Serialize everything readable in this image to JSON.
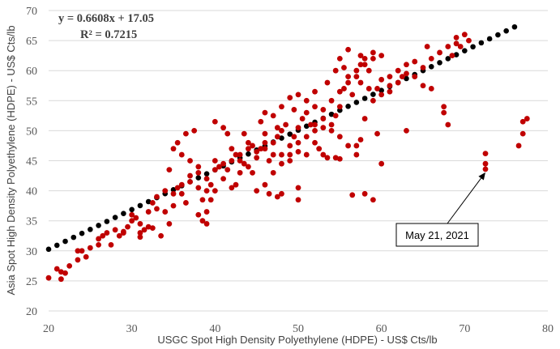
{
  "chart_data": {
    "type": "scatter",
    "title": "",
    "xlabel": "USGC Spot High Density Polyethylene (HDPE) - US$ Cts/lb",
    "ylabel": "Asia Spot High Density Polyethylene (HDPE) - US$ Cts/lb",
    "xlim": [
      20,
      80
    ],
    "ylim": [
      20,
      70
    ],
    "x_ticks": [
      20,
      30,
      40,
      50,
      60,
      70,
      80
    ],
    "y_ticks": [
      20,
      25,
      30,
      35,
      40,
      45,
      50,
      55,
      60,
      65,
      70
    ],
    "grid": "horizontal",
    "legend": "none",
    "colors": {
      "observed": "#c00000",
      "trend": "#000000",
      "grid": "#d9d9d9"
    },
    "equation": "y = 0.6608x + 17.05",
    "r_squared": "R² = 0.7215",
    "trendline": {
      "slope": 0.6608,
      "intercept": 17.05,
      "x_values": [
        20,
        21,
        22,
        23,
        24,
        25,
        26,
        27,
        28,
        29,
        30,
        31,
        32,
        33,
        34,
        35,
        36,
        37,
        38,
        39,
        40,
        41,
        42,
        43,
        44,
        45,
        46,
        47,
        48,
        49,
        50,
        51,
        52,
        53,
        54,
        55,
        56,
        57,
        58,
        59,
        60,
        61,
        62,
        63,
        64,
        65,
        66,
        67,
        68,
        69,
        70,
        71,
        72,
        73,
        74,
        75,
        76
      ]
    },
    "annotation": {
      "text": "May 21, 2021",
      "point": [
        72.5,
        43.6
      ]
    },
    "series": [
      {
        "points": [
          [
            20,
            25.5
          ],
          [
            21,
            27
          ],
          [
            21.5,
            26.5
          ],
          [
            22,
            26.3
          ],
          [
            21.5,
            25.3
          ],
          [
            22.5,
            27.5
          ],
          [
            23.5,
            28.5
          ],
          [
            23.5,
            30
          ],
          [
            24,
            30
          ],
          [
            24.5,
            29
          ],
          [
            25,
            30.5
          ],
          [
            26,
            32
          ],
          [
            26.5,
            32.5
          ],
          [
            26,
            31
          ],
          [
            27,
            33
          ],
          [
            27.5,
            31
          ],
          [
            28,
            33.5
          ],
          [
            28.5,
            32.5
          ],
          [
            29,
            33
          ],
          [
            29.5,
            34
          ],
          [
            30,
            35
          ],
          [
            30.5,
            35.5
          ],
          [
            31,
            34.5
          ],
          [
            31.5,
            33.5
          ],
          [
            32,
            34
          ],
          [
            29,
            33.2
          ],
          [
            30,
            36
          ],
          [
            31,
            33
          ],
          [
            32,
            36.5
          ],
          [
            33,
            37
          ],
          [
            33.5,
            32.5
          ],
          [
            32.5,
            33.8
          ],
          [
            31,
            32.3
          ],
          [
            32.5,
            38
          ],
          [
            33,
            39
          ],
          [
            34,
            40
          ],
          [
            35,
            39.5
          ],
          [
            35.5,
            40.5
          ],
          [
            36,
            41
          ],
          [
            37,
            41.5
          ],
          [
            38,
            43
          ],
          [
            34.5,
            43.5
          ],
          [
            35,
            47
          ],
          [
            35.5,
            48
          ],
          [
            36,
            46
          ],
          [
            37,
            45
          ],
          [
            37.5,
            50
          ],
          [
            36.5,
            49.5
          ],
          [
            38,
            44
          ],
          [
            38.5,
            38.5
          ],
          [
            39,
            40
          ],
          [
            39.5,
            38.5
          ],
          [
            38,
            36
          ],
          [
            39,
            34.5
          ],
          [
            38.5,
            35
          ],
          [
            39,
            36.5
          ],
          [
            40,
            40
          ],
          [
            40,
            45
          ],
          [
            40.5,
            44
          ],
          [
            41,
            42
          ],
          [
            41.5,
            43.5
          ],
          [
            42,
            47
          ],
          [
            42.5,
            46
          ],
          [
            43,
            45
          ],
          [
            43.5,
            44.5
          ],
          [
            44,
            48
          ],
          [
            44.5,
            47.5
          ],
          [
            45,
            46.5
          ],
          [
            45.5,
            47
          ],
          [
            46,
            48
          ],
          [
            46.5,
            45
          ],
          [
            47,
            46
          ],
          [
            47.5,
            49
          ],
          [
            48,
            50
          ],
          [
            48.5,
            51
          ],
          [
            49,
            47.5
          ],
          [
            49.5,
            49
          ],
          [
            50,
            50.5
          ],
          [
            50.5,
            52
          ],
          [
            51,
            53
          ],
          [
            51.5,
            51
          ],
          [
            52,
            48
          ],
          [
            52.5,
            47
          ],
          [
            53,
            46
          ],
          [
            53.5,
            45.5
          ],
          [
            54,
            51
          ],
          [
            54.5,
            52.5
          ],
          [
            55,
            54
          ],
          [
            55.5,
            57
          ],
          [
            56,
            58
          ],
          [
            56.5,
            56
          ],
          [
            57,
            59
          ],
          [
            57.5,
            61
          ],
          [
            58,
            62
          ],
          [
            58.5,
            60
          ],
          [
            59,
            63
          ],
          [
            59.5,
            57
          ],
          [
            60,
            58.5
          ],
          [
            61,
            56.5
          ],
          [
            62,
            60
          ],
          [
            63,
            61
          ],
          [
            64,
            59
          ],
          [
            65,
            60.5
          ],
          [
            66,
            62
          ],
          [
            67,
            63
          ],
          [
            68,
            64
          ],
          [
            69,
            65.5
          ],
          [
            70,
            66
          ],
          [
            69.5,
            64
          ],
          [
            68.5,
            62.5
          ],
          [
            67.5,
            54
          ],
          [
            67.5,
            53
          ],
          [
            68,
            51
          ],
          [
            66,
            57
          ],
          [
            65,
            57.5
          ],
          [
            63,
            50
          ],
          [
            60,
            44.5
          ],
          [
            59.5,
            49.5
          ],
          [
            59,
            38.5
          ],
          [
            58,
            39.5
          ],
          [
            56.5,
            39.3
          ],
          [
            57,
            47.5
          ],
          [
            57.5,
            48.5
          ],
          [
            54.5,
            45.5
          ],
          [
            55,
            45.3
          ],
          [
            50,
            38.5
          ],
          [
            48,
            39.5
          ],
          [
            46.5,
            39.5
          ],
          [
            47.5,
            39
          ],
          [
            42,
            40.5
          ],
          [
            42.5,
            41
          ],
          [
            44.5,
            43
          ],
          [
            40,
            51.5
          ],
          [
            41,
            50.5
          ],
          [
            41.5,
            49.5
          ],
          [
            43.5,
            49.5
          ],
          [
            45.5,
            51.5
          ],
          [
            46,
            53
          ],
          [
            47,
            52.5
          ],
          [
            48,
            54
          ],
          [
            49,
            55.5
          ],
          [
            50,
            56
          ],
          [
            51,
            55
          ],
          [
            52,
            54
          ],
          [
            53,
            52
          ],
          [
            54,
            50
          ],
          [
            55,
            49
          ],
          [
            56,
            47.5
          ],
          [
            57,
            46
          ],
          [
            58,
            52
          ],
          [
            59,
            55
          ],
          [
            60,
            56
          ],
          [
            61,
            57.5
          ],
          [
            62,
            58
          ],
          [
            63,
            59.5
          ],
          [
            64,
            61.5
          ],
          [
            45,
            40
          ],
          [
            46,
            41
          ],
          [
            47,
            43
          ],
          [
            48,
            44.5
          ],
          [
            49,
            46
          ],
          [
            50,
            48
          ],
          [
            51,
            49
          ],
          [
            52,
            50
          ],
          [
            53,
            53.5
          ],
          [
            54,
            55
          ],
          [
            55,
            56.5
          ],
          [
            56,
            59
          ],
          [
            57,
            60
          ],
          [
            58,
            61
          ],
          [
            59,
            62
          ],
          [
            60,
            62.5
          ],
          [
            56,
            63.5
          ],
          [
            55,
            62
          ],
          [
            54.5,
            60
          ],
          [
            57.5,
            58
          ],
          [
            58.5,
            57
          ],
          [
            61,
            59
          ],
          [
            62.5,
            59
          ],
          [
            43,
            43
          ],
          [
            44,
            44
          ],
          [
            45,
            45.5
          ],
          [
            46,
            47
          ],
          [
            47,
            48
          ],
          [
            48,
            46
          ],
          [
            49,
            45
          ],
          [
            50,
            46.5
          ],
          [
            51,
            46
          ],
          [
            52,
            51
          ],
          [
            53,
            50.5
          ],
          [
            39,
            42
          ],
          [
            40,
            43.5
          ],
          [
            41,
            44.5
          ],
          [
            42,
            45
          ],
          [
            43,
            46
          ],
          [
            44,
            47
          ],
          [
            39.5,
            41
          ],
          [
            38,
            40.5
          ],
          [
            37,
            42.5
          ],
          [
            36,
            39.5
          ],
          [
            35,
            37.5
          ],
          [
            34,
            36.5
          ],
          [
            34.5,
            34.5
          ],
          [
            36.5,
            38
          ],
          [
            72.5,
            43.6
          ],
          [
            72.5,
            44.5
          ],
          [
            72.5,
            46.2
          ],
          [
            76.5,
            47.5
          ],
          [
            77,
            49.5
          ],
          [
            77,
            51.5
          ],
          [
            77.5,
            52
          ],
          [
            69,
            64.5
          ],
          [
            70.5,
            65
          ],
          [
            65.5,
            64
          ],
          [
            50,
            40.5
          ],
          [
            57.5,
            62.5
          ],
          [
            55.5,
            60.5
          ],
          [
            53.5,
            58
          ],
          [
            52,
            56.5
          ],
          [
            49.5,
            53.5
          ],
          [
            47.5,
            50.5
          ],
          [
            46,
            49.5
          ]
        ]
      }
    ]
  }
}
